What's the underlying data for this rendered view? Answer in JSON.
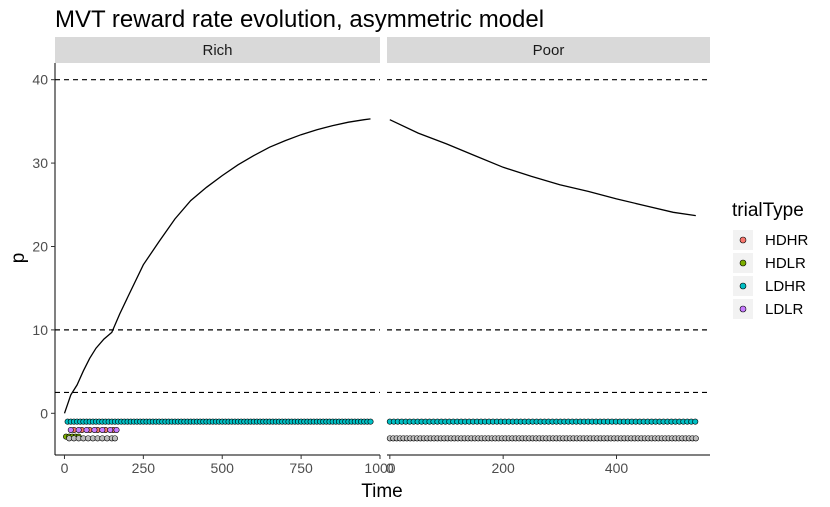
{
  "chart_data": {
    "type": "scatter",
    "title": "MVT reward rate evolution, asymmetric model",
    "xlabel": "Time",
    "ylabel": "p",
    "ylim": [
      -5,
      42
    ],
    "yticks": [
      0,
      10,
      20,
      30,
      40
    ],
    "hlines": [
      2.5,
      10,
      40
    ],
    "legend": {
      "title": "trialType",
      "position": "right",
      "items": [
        {
          "label": "HDHR",
          "color": "#F8766D"
        },
        {
          "label": "HDLR",
          "color": "#7CAE00"
        },
        {
          "label": "LDHR",
          "color": "#00BFC4"
        },
        {
          "label": "LDLR",
          "color": "#C77CFF"
        }
      ],
      "na_color": "#BEBEBE"
    },
    "panels": [
      {
        "strip": "Rich",
        "xlim": [
          -30,
          1000
        ],
        "xticks": [
          0,
          250,
          500,
          750,
          1000
        ],
        "xtick_labels": [
          "0",
          "250",
          "500",
          "750",
          "1000"
        ],
        "series": [
          {
            "kind": "line",
            "x": [
              0,
              20,
              40,
              60,
              80,
              100,
              125,
              150,
              175,
              200,
              250,
              300,
              350,
              400,
              450,
              500,
              550,
              600,
              650,
              700,
              750,
              800,
              850,
              900,
              950,
              970
            ],
            "y": [
              0,
              2.2,
              3.4,
              5.1,
              6.6,
              7.8,
              8.9,
              9.7,
              11.9,
              13.9,
              17.8,
              20.6,
              23.3,
              25.5,
              27.1,
              28.5,
              29.8,
              30.9,
              31.9,
              32.7,
              33.4,
              34.0,
              34.5,
              34.9,
              35.2,
              35.3
            ]
          },
          {
            "kind": "points",
            "label": "LDHR",
            "y": -1,
            "x_start": 10,
            "x_end": 970,
            "step": 10
          },
          {
            "kind": "points",
            "label": "HDLR",
            "y": -2.8,
            "x": [
              5,
              15,
              25,
              35,
              45
            ]
          },
          {
            "kind": "points",
            "label": "HDHR",
            "y": -2,
            "x": [
              30,
              55,
              80,
              105,
              130,
              155
            ]
          },
          {
            "kind": "points",
            "label": "LDLR",
            "y": -2,
            "x": [
              20,
              45,
              70,
              95,
              120,
              145,
              165
            ]
          },
          {
            "kind": "points",
            "label": "NA",
            "y": -3,
            "x": [
              15,
              30,
              45,
              60,
              75,
              90,
              105,
              120,
              135,
              150,
              160
            ]
          }
        ]
      },
      {
        "strip": "Poor",
        "xlim": [
          -5,
          565
        ],
        "xticks": [
          0,
          200,
          400
        ],
        "xtick_labels": [
          "0",
          "200",
          "400"
        ],
        "series": [
          {
            "kind": "line",
            "x": [
              0,
              50,
              100,
              150,
              200,
              250,
              300,
              350,
              400,
              450,
              500,
              540
            ],
            "y": [
              35.2,
              33.6,
              32.3,
              30.9,
              29.5,
              28.4,
              27.4,
              26.6,
              25.7,
              24.9,
              24.1,
              23.7
            ]
          },
          {
            "kind": "points",
            "label": "LDHR",
            "y": -1,
            "x_start": 0,
            "x_end": 540,
            "step": 7
          },
          {
            "kind": "points",
            "label": "NA",
            "y": -3,
            "x_start": 0,
            "x_end": 540,
            "step": 6
          }
        ]
      }
    ]
  }
}
